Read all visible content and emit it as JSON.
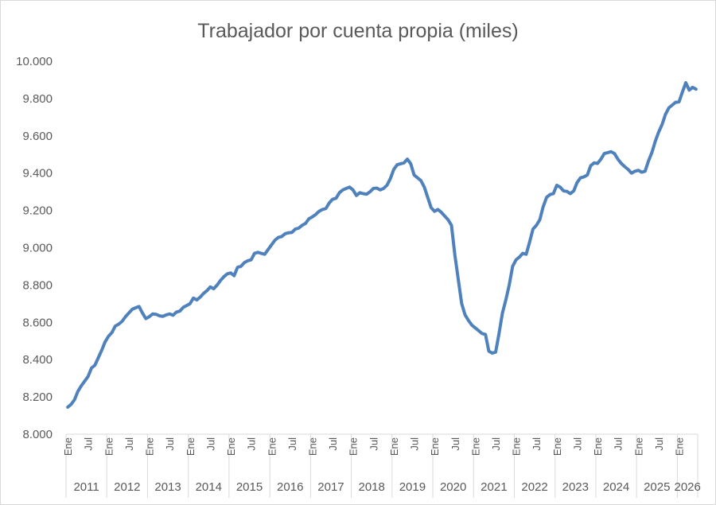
{
  "chart_data": {
    "type": "line",
    "title": "Trabajador por cuenta propia (miles)",
    "xlabel": "",
    "ylabel": "",
    "ylim": [
      8000,
      10000
    ],
    "yticks": [
      8000,
      8200,
      8400,
      8600,
      8800,
      9000,
      9200,
      9400,
      9600,
      9800,
      10000
    ],
    "ytick_labels": [
      "8.000",
      "8.200",
      "8.400",
      "8.600",
      "8.800",
      "9.000",
      "9.200",
      "9.400",
      "9.600",
      "9.800",
      "10.000"
    ],
    "month_tick_labels": [
      "Ene",
      "Jul"
    ],
    "years": [
      "2011",
      "2012",
      "2013",
      "2014",
      "2015",
      "2016",
      "2017",
      "2018",
      "2019",
      "2020",
      "2021",
      "2022",
      "2023",
      "2024",
      "2025",
      "2026"
    ],
    "series_color": "#4f81bd",
    "series": [
      {
        "name": "Trabajador por cuenta propia",
        "start": "2011-01",
        "values": [
          8145,
          8160,
          8185,
          8230,
          8260,
          8285,
          8310,
          8355,
          8370,
          8410,
          8450,
          8495,
          8525,
          8545,
          8580,
          8590,
          8605,
          8630,
          8650,
          8670,
          8678,
          8685,
          8650,
          8620,
          8630,
          8645,
          8643,
          8635,
          8632,
          8640,
          8645,
          8638,
          8655,
          8660,
          8680,
          8690,
          8700,
          8730,
          8720,
          8735,
          8755,
          8770,
          8790,
          8780,
          8800,
          8825,
          8845,
          8860,
          8865,
          8850,
          8895,
          8900,
          8920,
          8930,
          8935,
          8970,
          8975,
          8970,
          8965,
          8990,
          9015,
          9040,
          9055,
          9060,
          9075,
          9080,
          9082,
          9100,
          9105,
          9120,
          9130,
          9155,
          9165,
          9178,
          9195,
          9205,
          9210,
          9240,
          9260,
          9265,
          9295,
          9310,
          9318,
          9325,
          9310,
          9280,
          9295,
          9290,
          9287,
          9300,
          9318,
          9320,
          9310,
          9318,
          9335,
          9370,
          9420,
          9445,
          9450,
          9455,
          9475,
          9450,
          9390,
          9375,
          9360,
          9325,
          9270,
          9215,
          9195,
          9205,
          9190,
          9170,
          9150,
          9120,
          8960,
          8830,
          8700,
          8640,
          8610,
          8585,
          8570,
          8555,
          8540,
          8535,
          8445,
          8435,
          8440,
          8540,
          8650,
          8720,
          8800,
          8900,
          8935,
          8950,
          8970,
          8965,
          9030,
          9100,
          9120,
          9150,
          9220,
          9270,
          9285,
          9290,
          9335,
          9325,
          9305,
          9302,
          9290,
          9305,
          9350,
          9375,
          9380,
          9390,
          9440,
          9455,
          9452,
          9475,
          9505,
          9510,
          9515,
          9505,
          9475,
          9452,
          9435,
          9420,
          9400,
          9410,
          9415,
          9405,
          9410,
          9465,
          9510,
          9570,
          9620,
          9660,
          9715,
          9750,
          9765,
          9780,
          9782,
          9835,
          9885,
          9845,
          9860,
          9850
        ]
      }
    ]
  }
}
